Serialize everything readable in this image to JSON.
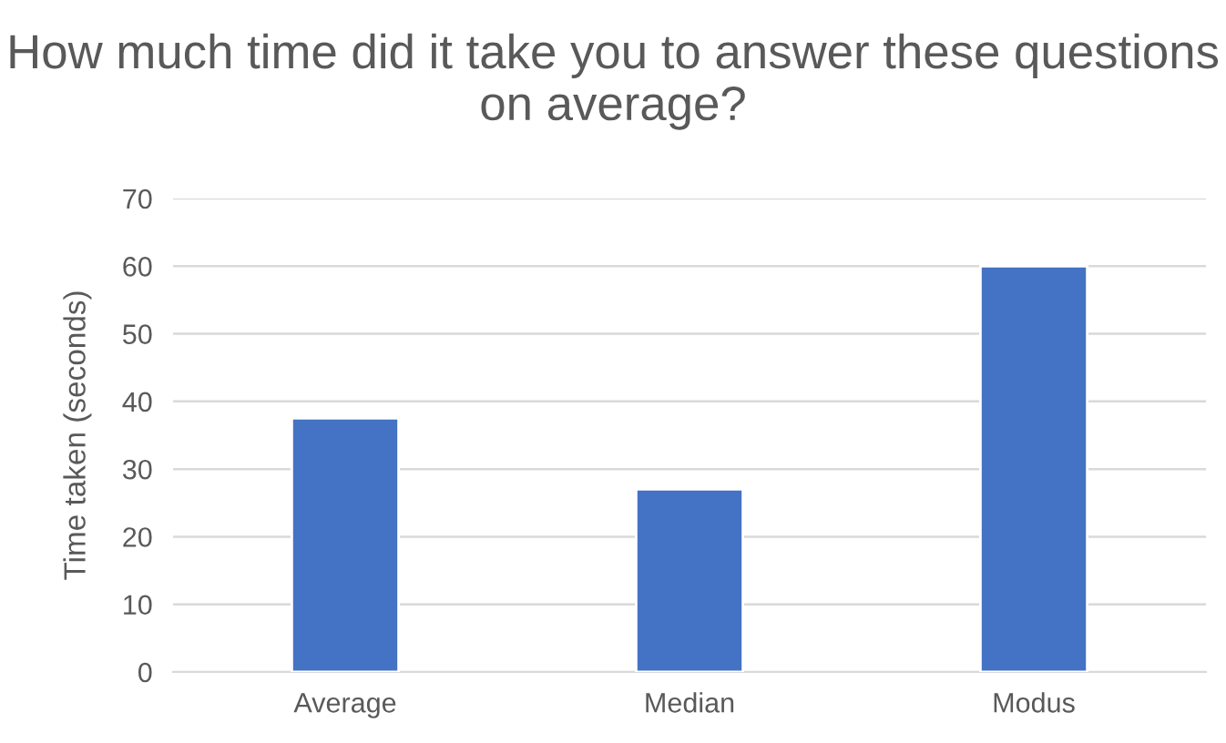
{
  "chart_data": {
    "type": "bar",
    "title": "How much time did it take you to answer these questions on average?",
    "ylabel": "Time taken (seconds)",
    "categories": [
      "Average",
      "Median",
      "Modus"
    ],
    "values": [
      37.5,
      27,
      60
    ],
    "color": "#4472c4",
    "ylim": [
      0,
      70
    ],
    "yticks": [
      0,
      10,
      20,
      30,
      40,
      50,
      60,
      70
    ],
    "grid": "y"
  }
}
